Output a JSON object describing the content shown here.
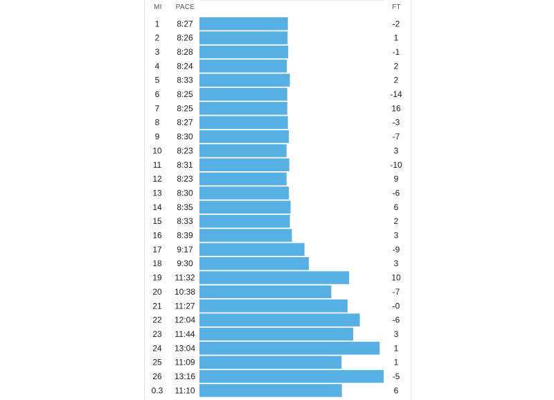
{
  "header": {
    "mi": "MI",
    "pace": "PACE",
    "ft": "FT"
  },
  "colors": {
    "bar": "#56b0e3",
    "text": "#1c1c1c"
  },
  "chart_data": {
    "type": "bar",
    "orientation": "horizontal",
    "categories": [
      "1",
      "2",
      "3",
      "4",
      "5",
      "6",
      "7",
      "8",
      "9",
      "10",
      "11",
      "12",
      "13",
      "14",
      "15",
      "16",
      "17",
      "18",
      "19",
      "20",
      "21",
      "22",
      "23",
      "24",
      "25",
      "26",
      "0.3"
    ],
    "pace_labels": [
      "8:27",
      "8:26",
      "8:28",
      "8:24",
      "8:33",
      "8:25",
      "8:25",
      "8:27",
      "8:30",
      "8:23",
      "8:31",
      "8:23",
      "8:30",
      "8:35",
      "8:33",
      "8:39",
      "9:17",
      "9:30",
      "11:32",
      "10:38",
      "11:27",
      "12:04",
      "11:44",
      "13:04",
      "11:09",
      "13:16",
      "11:10"
    ],
    "values_seconds": [
      507,
      506,
      508,
      504,
      513,
      505,
      505,
      507,
      510,
      503,
      511,
      503,
      510,
      515,
      513,
      519,
      557,
      570,
      692,
      638,
      687,
      724,
      704,
      784,
      669,
      796,
      670
    ],
    "elevation_ft": [
      "-2",
      "1",
      "-1",
      "2",
      "2",
      "-14",
      "16",
      "-3",
      "-7",
      "3",
      "-10",
      "9",
      "-6",
      "6",
      "2",
      "3",
      "-9",
      "3",
      "10",
      "-7",
      "-0",
      "-6",
      "3",
      "1",
      "1",
      "-5",
      "6"
    ]
  }
}
